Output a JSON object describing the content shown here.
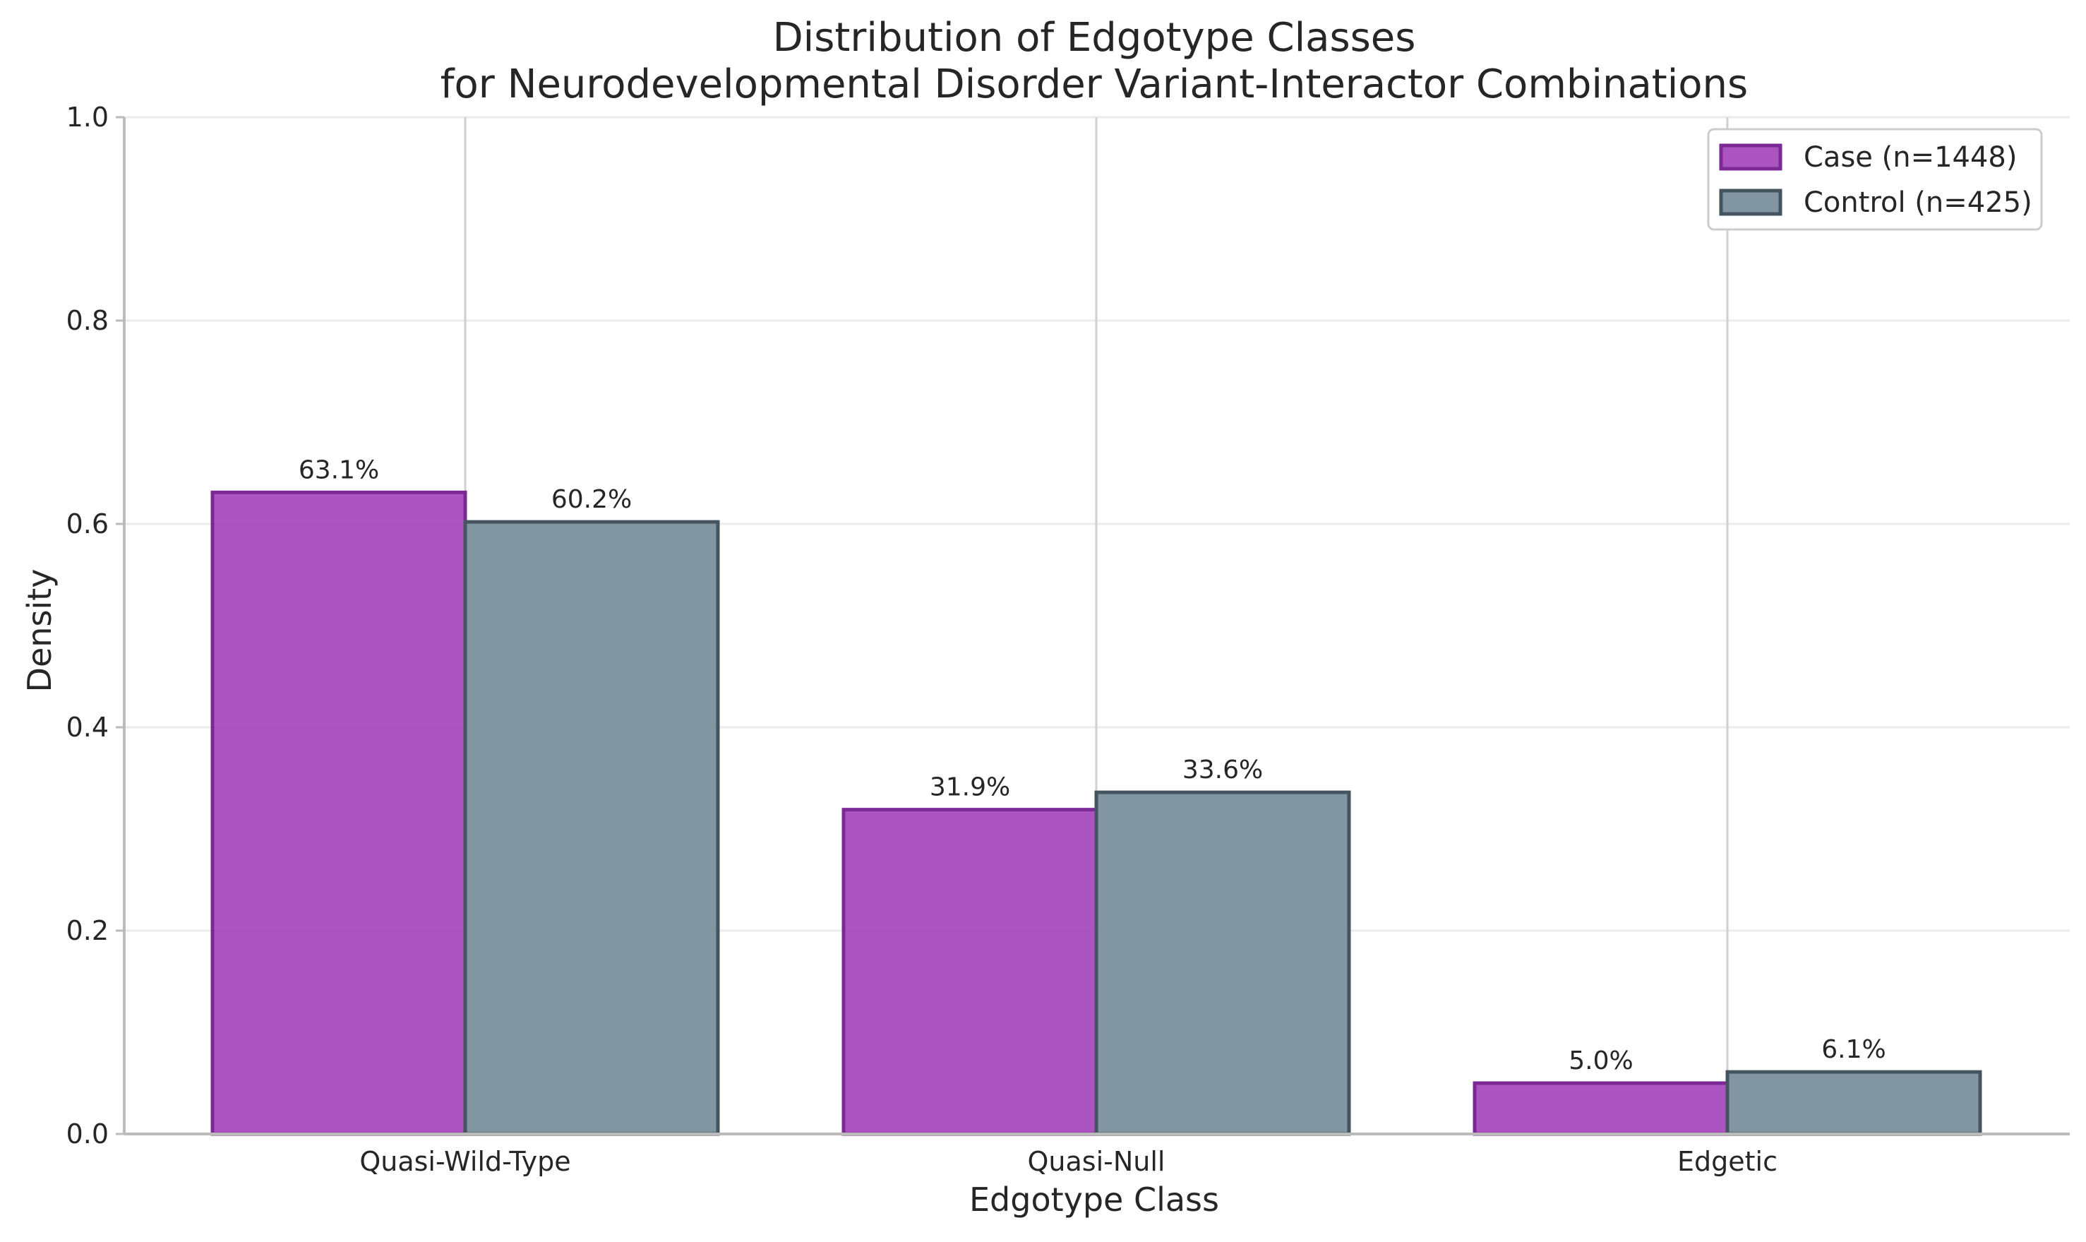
{
  "chart_data": {
    "type": "bar",
    "title": "Distribution of Edgotype Classes\nfor Neurodevelopmental Disorder Variant-Interactor Combinations",
    "title_lines": [
      "Distribution of Edgotype Classes",
      "for Neurodevelopmental Disorder Variant-Interactor Combinations"
    ],
    "xlabel": "Edgotype Class",
    "ylabel": "Density",
    "categories": [
      "Quasi-Wild-Type",
      "Quasi-Null",
      "Edgetic"
    ],
    "ylim": [
      0,
      1.0
    ],
    "yticks": [
      0.0,
      0.2,
      0.4,
      0.6,
      0.8,
      1.0
    ],
    "ytick_labels": [
      "0.0",
      "0.2",
      "0.4",
      "0.6",
      "0.8",
      "1.0"
    ],
    "grid": true,
    "legend_position": "top-right",
    "series": [
      {
        "name": "Case (n=1448)",
        "values": [
          0.631,
          0.319,
          0.05
        ],
        "labels": [
          "63.1%",
          "31.9%",
          "5.0%"
        ],
        "color": "#A03DB8",
        "edge_color": "#7B2A95"
      },
      {
        "name": "Control (n=425)",
        "values": [
          0.602,
          0.336,
          0.061
        ],
        "labels": [
          "60.2%",
          "33.6%",
          "6.1%"
        ],
        "color": "#6F8793",
        "edge_color": "#455560"
      }
    ]
  }
}
